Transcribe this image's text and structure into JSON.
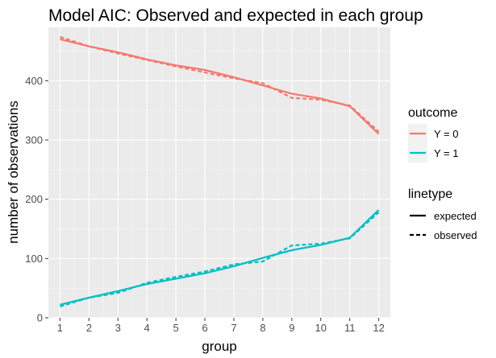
{
  "chart_data": {
    "type": "line",
    "title": "Model AIC: Observed and expected in each group",
    "xlabel": "group",
    "ylabel": "number of observations",
    "x": [
      1,
      2,
      3,
      4,
      5,
      6,
      7,
      8,
      9,
      10,
      11,
      12
    ],
    "xticks": [
      "1",
      "2",
      "3",
      "4",
      "5",
      "6",
      "7",
      "8",
      "9",
      "10",
      "11",
      "12"
    ],
    "yticks": [
      "0",
      "100",
      "200",
      "300",
      "400"
    ],
    "xlim": [
      0.6,
      12.4
    ],
    "ylim": [
      0,
      490
    ],
    "grid": true,
    "series": [
      {
        "outcome": "Y = 0",
        "linetype": "expected",
        "color": "#F8766D",
        "values": [
          470,
          458,
          448,
          436,
          426,
          418,
          406,
          392,
          378,
          370,
          357,
          310
        ]
      },
      {
        "outcome": "Y = 0",
        "linetype": "observed",
        "color": "#F8766D",
        "values": [
          474,
          458,
          446,
          435,
          424,
          414,
          404,
          396,
          371,
          368,
          358,
          314
        ]
      },
      {
        "outcome": "Y = 1",
        "linetype": "expected",
        "color": "#00BFC4",
        "values": [
          22,
          34,
          45,
          57,
          66,
          75,
          87,
          101,
          114,
          123,
          135,
          182
        ]
      },
      {
        "outcome": "Y = 1",
        "linetype": "observed",
        "color": "#00BFC4",
        "values": [
          19,
          34,
          42,
          59,
          69,
          78,
          90,
          95,
          122,
          125,
          134,
          178
        ]
      }
    ],
    "legend": {
      "placement": "right",
      "outcome": {
        "title": "outcome",
        "items": [
          {
            "label": "Y = 0",
            "color": "#F8766D"
          },
          {
            "label": "Y = 1",
            "color": "#00BFC4"
          }
        ]
      },
      "linetype": {
        "title": "linetype",
        "items": [
          {
            "label": "expected",
            "style": "solid"
          },
          {
            "label": "observed",
            "style": "dashed"
          }
        ]
      }
    }
  }
}
